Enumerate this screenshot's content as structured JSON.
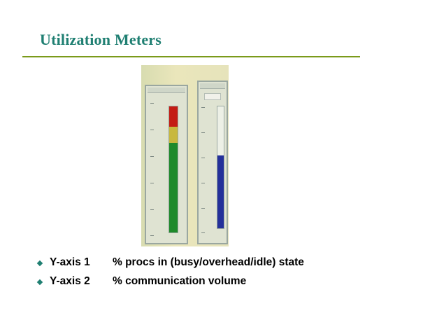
{
  "slide": {
    "title": "Utilization Meters",
    "accent_color": "#1f7f72",
    "rule_color": "#7a9a1a"
  },
  "figure": {
    "meters": [
      {
        "name": "utilization-meter",
        "segments": [
          {
            "state": "idle",
            "color": "#c41c14",
            "fraction": 0.16
          },
          {
            "state": "overhead",
            "color": "#c8b83e",
            "fraction": 0.13
          },
          {
            "state": "busy",
            "color": "#1e8a2a",
            "fraction": 0.71
          }
        ]
      },
      {
        "name": "communication-meter",
        "segments": [
          {
            "state": "volume",
            "color": "#24309a",
            "fraction": 0.6
          }
        ]
      }
    ]
  },
  "bullets": [
    {
      "key": "Y-axis 1",
      "text": "% procs in (busy/overhead/idle) state"
    },
    {
      "key": "Y-axis 2",
      "text": "% communication volume"
    }
  ]
}
